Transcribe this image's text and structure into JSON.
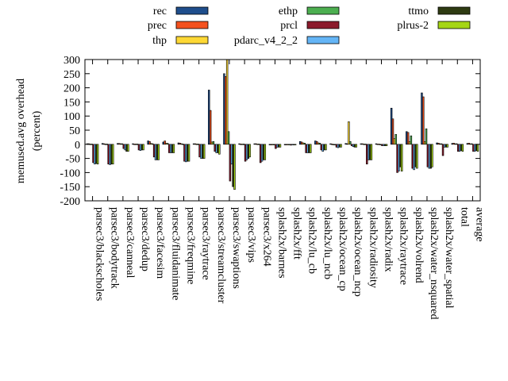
{
  "chart_data": {
    "type": "bar",
    "title": "",
    "xlabel": "",
    "ylabel": "memused.avg overhead (percent)",
    "ylabel_lines": [
      "memused.avg overhead",
      "(percent)"
    ],
    "ylim": [
      -200,
      300
    ],
    "yticks": [
      -200,
      -150,
      -100,
      -50,
      0,
      50,
      100,
      150,
      200,
      250,
      300
    ],
    "grid": false,
    "legend_position": "top",
    "categories": [
      "parsec3/blackscholes",
      "parsec3/bodytrack",
      "parsec3/canneal",
      "parsec3/dedup",
      "parsec3/facesim",
      "parsec3/fluidanimate",
      "parsec3/freqmine",
      "parsec3/raytrace",
      "parsec3/streamcluster",
      "parsec3/swaptions",
      "parsec3/vips",
      "parsec3/x264",
      "splash2x/barnes",
      "splash2x/fft",
      "splash2x/lu_cb",
      "splash2x/lu_ncb",
      "splash2x/ocean_cp",
      "splash2x/ocean_ncp",
      "splash2x/radiosity",
      "splash2x/radix",
      "splash2x/raytrace",
      "splash2x/volrend",
      "splash2x/water_nsquared",
      "splash2x/water_spatial",
      "total",
      "average"
    ],
    "series": [
      {
        "name": "rec",
        "color": "#1f4e8c",
        "values": [
          2,
          3,
          3,
          2,
          12,
          8,
          5,
          2,
          192,
          250,
          2,
          2,
          0,
          0,
          10,
          12,
          2,
          3,
          2,
          2,
          128,
          45,
          182,
          5,
          3,
          3
        ]
      },
      {
        "name": "prec",
        "color": "#f4511e",
        "values": [
          2,
          2,
          3,
          1,
          10,
          12,
          4,
          2,
          120,
          240,
          1,
          2,
          0,
          0,
          8,
          10,
          1,
          2,
          2,
          1,
          90,
          42,
          168,
          4,
          4,
          4
        ]
      },
      {
        "name": "thp",
        "color": "#fdd835",
        "values": [
          1,
          1,
          2,
          1,
          3,
          4,
          2,
          1,
          8,
          300,
          1,
          1,
          0,
          0,
          5,
          5,
          0,
          80,
          1,
          1,
          20,
          10,
          10,
          2,
          2,
          2
        ]
      },
      {
        "name": "ethp",
        "color": "#4caf50",
        "values": [
          1,
          1,
          2,
          1,
          2,
          3,
          1,
          1,
          10,
          45,
          1,
          1,
          0,
          0,
          4,
          4,
          0,
          10,
          1,
          0,
          35,
          30,
          55,
          2,
          2,
          2
        ]
      },
      {
        "name": "prcl",
        "color": "#8b1a2b",
        "values": [
          -65,
          -70,
          -15,
          -20,
          -45,
          -30,
          -60,
          -45,
          -25,
          -130,
          -60,
          -65,
          -15,
          -3,
          -30,
          -20,
          -10,
          -5,
          -70,
          -5,
          -100,
          -85,
          -80,
          -40,
          -25,
          -25
        ]
      },
      {
        "name": "pdarc_v4_2_2",
        "color": "#64b5f6",
        "values": [
          -70,
          -72,
          -20,
          -22,
          -55,
          -30,
          -62,
          -50,
          -30,
          -70,
          -55,
          -60,
          -10,
          -2,
          -30,
          -25,
          -12,
          -8,
          -55,
          -5,
          -95,
          -90,
          -85,
          -10,
          -25,
          -25
        ]
      },
      {
        "name": "ttmo",
        "color": "#2e3b12",
        "values": [
          -68,
          -70,
          -25,
          -20,
          -55,
          -30,
          -60,
          -50,
          -30,
          -150,
          -50,
          -55,
          -10,
          -2,
          -30,
          -20,
          -10,
          -10,
          -55,
          -5,
          -80,
          -80,
          -85,
          -10,
          -22,
          -22
        ]
      },
      {
        "name": "plrus-2",
        "color": "#a5d615",
        "values": [
          -70,
          -70,
          -25,
          -20,
          -55,
          -30,
          -60,
          -50,
          -35,
          -160,
          -45,
          -55,
          -10,
          -2,
          -30,
          -20,
          -10,
          -10,
          -55,
          -5,
          -95,
          -85,
          -80,
          -10,
          -25,
          -25
        ]
      }
    ]
  }
}
